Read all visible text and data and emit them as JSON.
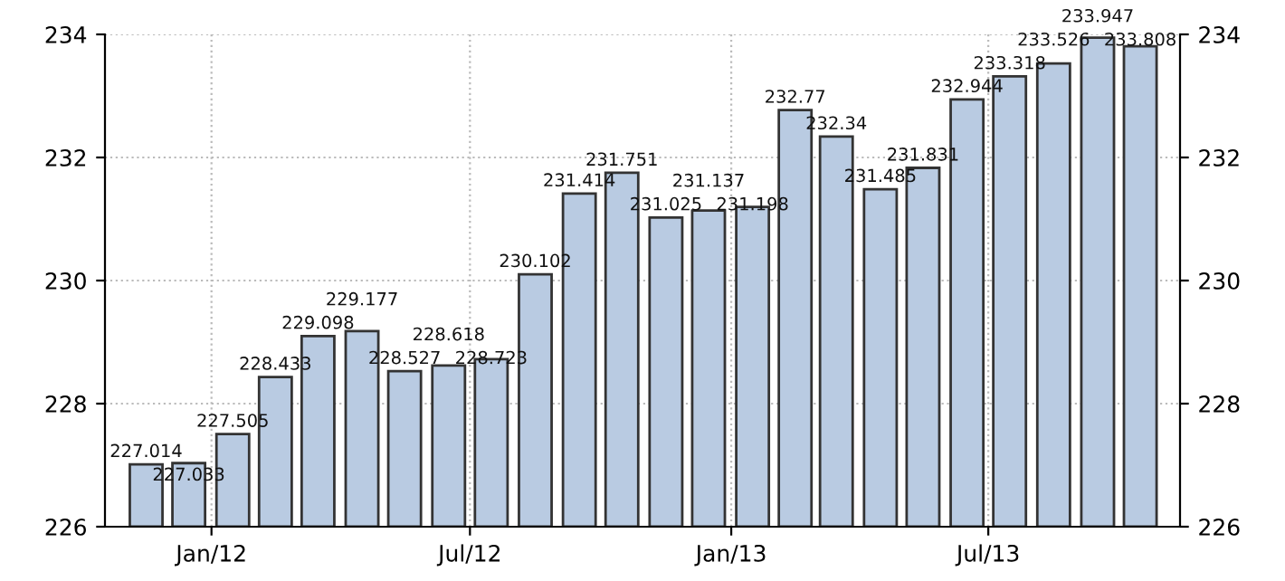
{
  "chart_data": {
    "type": "bar",
    "x": [
      "2011-11-16",
      "2011-12-16",
      "2012-01-16",
      "2012-02-15",
      "2012-03-16",
      "2012-04-16",
      "2012-05-16",
      "2012-06-16",
      "2012-07-16",
      "2012-08-16",
      "2012-09-16",
      "2012-10-16",
      "2012-11-16",
      "2012-12-16",
      "2013-01-16",
      "2013-02-15",
      "2013-03-16",
      "2013-04-16",
      "2013-05-16",
      "2013-06-16",
      "2013-07-16",
      "2013-08-16",
      "2013-09-16",
      "2013-10-16"
    ],
    "values": [
      227.014,
      227.033,
      227.505,
      228.433,
      229.098,
      229.177,
      228.527,
      228.618,
      228.723,
      230.102,
      231.414,
      231.751,
      231.025,
      231.137,
      231.198,
      232.77,
      232.34,
      231.485,
      231.831,
      232.944,
      233.318,
      233.526,
      233.947,
      233.808
    ],
    "color": "#b9cbe2",
    "data_labels": true,
    "xlim": [
      "2011-10-18",
      "2013-11-13"
    ],
    "xticks": [
      {
        "value": "2012-01-01",
        "label": "Jan/12"
      },
      {
        "value": "2012-07-01",
        "label": "Jul/12"
      },
      {
        "value": "2013-01-01",
        "label": "Jan/13"
      },
      {
        "value": "2013-07-01",
        "label": "Jul/13"
      }
    ],
    "ylim": [
      226,
      234
    ],
    "yticks": [
      226,
      228,
      230,
      232,
      234
    ],
    "y2lim": [
      226,
      234
    ],
    "y2ticks": [
      226,
      228,
      230,
      232,
      234
    ],
    "grid": true
  }
}
